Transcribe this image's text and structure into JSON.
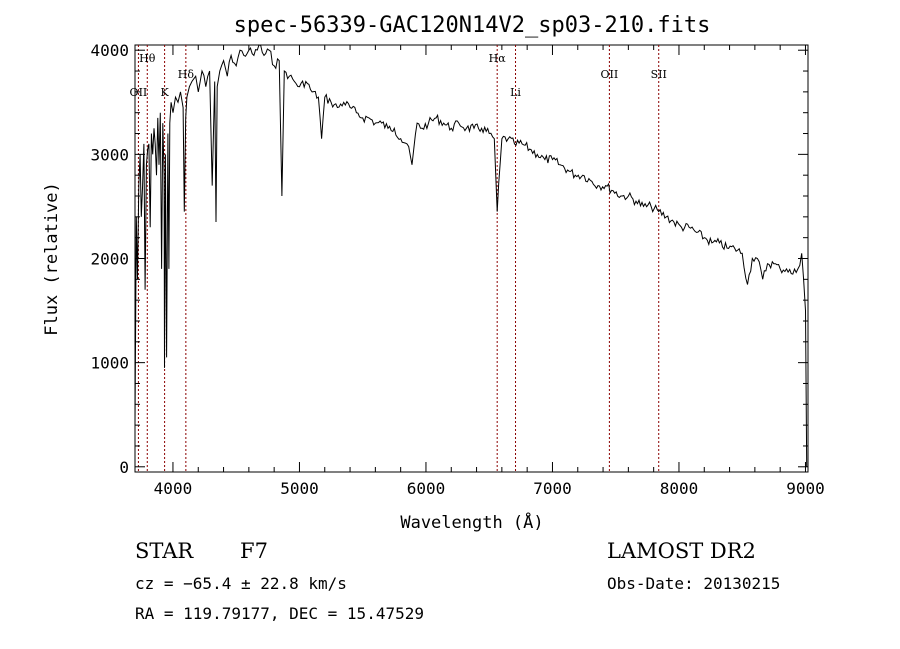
{
  "chart_data": {
    "type": "line",
    "title": "spec-56339-GAC120N14V2_sp03-210.fits",
    "xlabel": "Wavelength (Å)",
    "ylabel": "Flux (relative)",
    "xlim": [
      3700,
      9020
    ],
    "ylim": [
      -50,
      4050
    ],
    "xticks": [
      4000,
      5000,
      6000,
      7000,
      8000,
      9000
    ],
    "yticks": [
      0,
      1000,
      2000,
      3000,
      4000
    ],
    "grid": false,
    "series": [
      {
        "x": [
          3700,
          3710,
          3720,
          3730,
          3740,
          3750,
          3760,
          3770,
          3780,
          3790,
          3800,
          3810,
          3820,
          3830,
          3840,
          3850,
          3860,
          3870,
          3880,
          3890,
          3900,
          3910,
          3920,
          3930,
          3933,
          3940,
          3950,
          3960,
          3968,
          3975,
          3985,
          4000,
          4020,
          4040,
          4060,
          4080,
          4090,
          4101,
          4110,
          4130,
          4150,
          4180,
          4200,
          4230,
          4260,
          4290,
          4310,
          4330,
          4340,
          4350,
          4370,
          4400,
          4430,
          4460,
          4500,
          4530,
          4560,
          4600,
          4640,
          4680,
          4720,
          4760,
          4800,
          4840,
          4861,
          4880,
          4920,
          4960,
          5000,
          5050,
          5100,
          5150,
          5175,
          5200,
          5250,
          5300,
          5350,
          5400,
          5450,
          5500,
          5550,
          5600,
          5650,
          5700,
          5750,
          5800,
          5850,
          5890,
          5930,
          5970,
          6020,
          6080,
          6140,
          6200,
          6260,
          6320,
          6380,
          6440,
          6500,
          6540,
          6563,
          6600,
          6650,
          6700,
          6760,
          6820,
          6880,
          6940,
          7000,
          7060,
          7120,
          7180,
          7240,
          7300,
          7360,
          7420,
          7480,
          7540,
          7600,
          7660,
          7720,
          7780,
          7840,
          7900,
          7960,
          8020,
          8080,
          8140,
          8200,
          8260,
          8320,
          8380,
          8440,
          8500,
          8542,
          8580,
          8620,
          8662,
          8700,
          8750,
          8800,
          8850,
          8900,
          8940,
          8970,
          8985,
          9000,
          9010
        ],
        "y": [
          400,
          2400,
          1800,
          2700,
          3000,
          2400,
          2700,
          3100,
          1700,
          2900,
          3050,
          3100,
          2300,
          3200,
          3000,
          3250,
          3100,
          2800,
          3350,
          2900,
          3400,
          1900,
          3300,
          2800,
          950,
          3000,
          1050,
          3200,
          1900,
          3300,
          3500,
          3400,
          3550,
          3500,
          3600,
          3450,
          2450,
          3350,
          3550,
          3650,
          3700,
          3750,
          3600,
          3800,
          3650,
          3800,
          2700,
          3700,
          2350,
          3650,
          3800,
          3900,
          3750,
          3950,
          3850,
          4000,
          3950,
          4000,
          3950,
          4050,
          3950,
          4000,
          3850,
          3900,
          2600,
          3800,
          3750,
          3700,
          3650,
          3700,
          3600,
          3550,
          3150,
          3550,
          3500,
          3450,
          3500,
          3450,
          3400,
          3350,
          3350,
          3300,
          3300,
          3250,
          3250,
          3150,
          3100,
          2900,
          3300,
          3250,
          3300,
          3350,
          3300,
          3250,
          3300,
          3250,
          3250,
          3250,
          3200,
          3150,
          2450,
          3150,
          3150,
          3100,
          3100,
          3050,
          3000,
          2950,
          2950,
          2900,
          2850,
          2800,
          2800,
          2750,
          2700,
          2700,
          2650,
          2600,
          2600,
          2550,
          2500,
          2500,
          2450,
          2400,
          2350,
          2300,
          2300,
          2250,
          2200,
          2150,
          2150,
          2100,
          2100,
          2050,
          1750,
          2000,
          2000,
          1800,
          1950,
          1950,
          1900,
          1900,
          1850,
          1900,
          2050,
          1800,
          1500,
          0
        ]
      }
    ],
    "annotations": {
      "lines": [
        {
          "label": "Hθ",
          "x": 3797,
          "level": 1
        },
        {
          "label": "OII",
          "x": 3727,
          "level": 2
        },
        {
          "label": "K",
          "x": 3934,
          "level": 2
        },
        {
          "label": "Hδ",
          "x": 4102,
          "level": 3
        },
        {
          "label": "Hα",
          "x": 6563,
          "level": 1
        },
        {
          "label": "Li",
          "x": 6708,
          "level": 2
        },
        {
          "label": "OII",
          "x": 7450,
          "level": 3
        },
        {
          "label": "SII",
          "x": 7840,
          "level": 3
        }
      ]
    },
    "line_color": "#000000",
    "marker_color": "#8b0000"
  },
  "info": {
    "object_class": "STAR",
    "subclass": "F7",
    "survey": "LAMOST DR2",
    "cz": "cz = −65.4 ± 22.8 km/s",
    "obs_date": "Obs-Date: 20130215",
    "coords": "RA = 119.79177, DEC =  15.47529"
  }
}
